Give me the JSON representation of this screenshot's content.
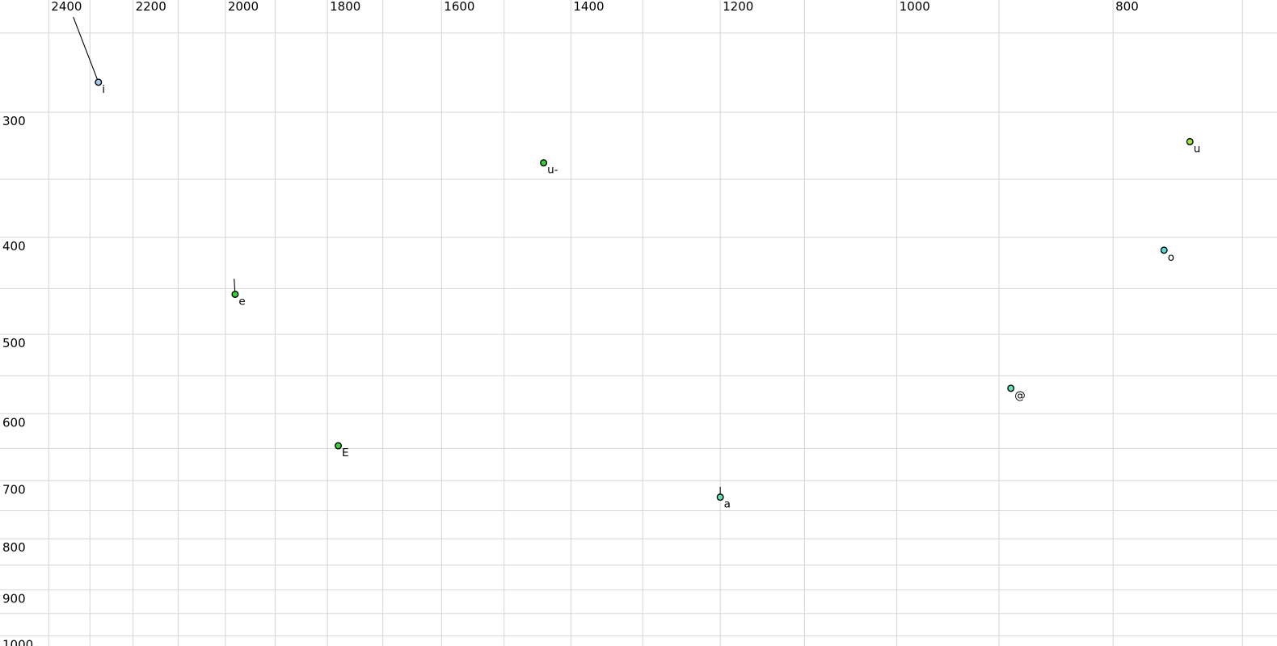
{
  "chart_data": {
    "type": "scatter",
    "title": "",
    "xlabel": "",
    "ylabel": "",
    "description": "Vowel formant chart: F2 (Hz) on top axis, reversed, log scale; F1 (Hz) on left axis, increasing downward, log scale; grid on; no legend",
    "x_axis": {
      "unit": "Hz",
      "scale": "log",
      "reversed": true,
      "position": "top",
      "tick_labels": [
        "2400",
        "2200",
        "2000",
        "1800",
        "1600",
        "1400",
        "1200",
        "1000",
        "800"
      ],
      "tick_values": [
        2400,
        2200,
        2000,
        1800,
        1600,
        1400,
        1200,
        1000,
        800
      ],
      "gridline_values": [
        2400,
        2300,
        2200,
        2100,
        2000,
        1900,
        1800,
        1700,
        1600,
        1500,
        1400,
        1300,
        1200,
        1100,
        1000,
        900,
        800,
        700
      ],
      "visible_range": [
        2524,
        675
      ]
    },
    "y_axis": {
      "unit": "Hz",
      "scale": "log",
      "reversed": false,
      "position": "left",
      "tick_labels": [
        "300",
        "400",
        "500",
        "600",
        "700",
        "800",
        "900",
        "1000"
      ],
      "tick_values": [
        300,
        400,
        500,
        600,
        700,
        800,
        900,
        1000
      ],
      "gridline_values": [
        250,
        300,
        350,
        400,
        450,
        500,
        550,
        600,
        650,
        700,
        750,
        800,
        850,
        900,
        950,
        1000
      ],
      "visible_range": [
        232,
        1024
      ]
    },
    "series": [
      {
        "label": "i",
        "f2_hz": 2280,
        "f1_hz": 280,
        "color": "#a6c8f0",
        "tail_from": {
          "f2_hz": 2340,
          "f1_hz": 241
        }
      },
      {
        "label": "u-",
        "f2_hz": 1440,
        "f1_hz": 337,
        "color": "#2fd42f",
        "tail_from": null
      },
      {
        "label": "e",
        "f2_hz": 1980,
        "f1_hz": 456,
        "color": "#2fd42f",
        "tail_from": {
          "f2_hz": 1982,
          "f1_hz": 440
        }
      },
      {
        "label": "E",
        "f2_hz": 1780,
        "f1_hz": 646,
        "color": "#2fd42f",
        "tail_from": null
      },
      {
        "label": "u",
        "f2_hz": 739,
        "f1_hz": 321,
        "color": "#a3e62e",
        "tail_from": null
      },
      {
        "label": "o",
        "f2_hz": 759,
        "f1_hz": 412,
        "color": "#48e0dc",
        "tail_from": null
      },
      {
        "label": "@",
        "f2_hz": 889,
        "f1_hz": 566,
        "color": "#5be6b9",
        "tail_from": null
      },
      {
        "label": "a",
        "f2_hz": 1200,
        "f1_hz": 727,
        "color": "#5be6b9",
        "tail_from": {
          "f2_hz": 1200,
          "f1_hz": 710
        }
      }
    ],
    "styles": {
      "background": "#ffffff",
      "gridline_color": "#d5d5d5",
      "point_outline_color": "#000000",
      "tail_line_color": "#000000",
      "label_color": "#000000"
    }
  }
}
